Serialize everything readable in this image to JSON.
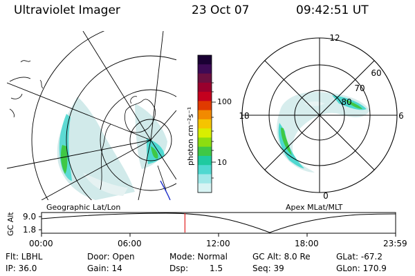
{
  "header": {
    "title": "Ultraviolet Imager",
    "date": "23 Oct 07",
    "time": "09:42:51 UT"
  },
  "maps": {
    "geo_label": "Geographic Lat/Lon",
    "apex_label": "Apex MLat/MLT",
    "apex_mlt_labels": {
      "top": "12",
      "bottom": "0",
      "left": "18",
      "right": "6"
    },
    "apex_lat_labels": [
      "60",
      "70",
      "80"
    ]
  },
  "colorbar": {
    "label": "photon cm⁻²s⁻¹",
    "tick_100": "100",
    "tick_10": "10",
    "colors": [
      "#1a0033",
      "#3d0a55",
      "#6b1040",
      "#99002d",
      "#c4001e",
      "#e03a00",
      "#f28a00",
      "#f5c400",
      "#d9ee00",
      "#8cdd10",
      "#3fc845",
      "#1fcaa0",
      "#4fd8d0",
      "#a0e8e8",
      "#d8f4f4"
    ]
  },
  "timeline": {
    "axis_label": "GC Alt",
    "y_top": "9.0",
    "y_bottom": "1.8",
    "ticks": [
      "00:00",
      "06:00",
      "12:00",
      "18:00",
      "23:59"
    ],
    "marker_fraction": 0.405
  },
  "info": {
    "filter": "Flt: LBHL",
    "ip": "IP: 36.0",
    "door": "Door: Open",
    "gain": "Gain: 14",
    "mode": "Mode: Normal",
    "dsp_label": "Dsp:",
    "dsp_value": "1.5",
    "gc_alt": "GC Alt: 8.0 Re",
    "seq": "Seq: 39",
    "glat": "GLat: -67.2",
    "glon": "GLon: 170.9"
  }
}
